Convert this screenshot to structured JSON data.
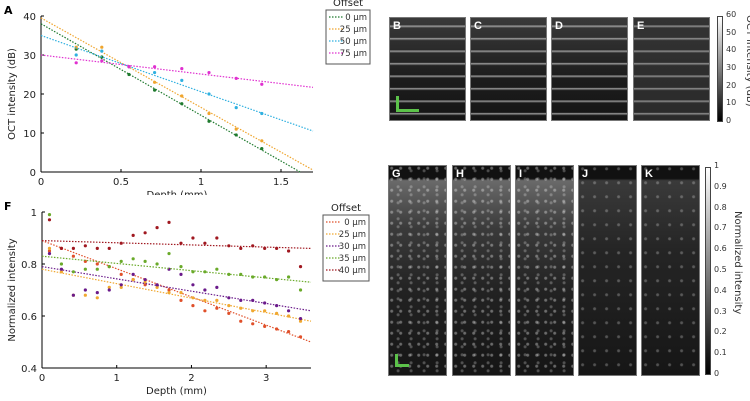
{
  "chart_data": [
    {
      "panel": "A",
      "type": "scatter",
      "xlabel": "Depth (mm)",
      "ylabel": "OCT intensity (dB)",
      "xlim": [
        0,
        1.7
      ],
      "ylim": [
        0,
        40
      ],
      "xticks": [
        "0",
        "0.5",
        "1",
        "1.5"
      ],
      "yticks": [
        "0",
        "10",
        "20",
        "30",
        "40"
      ],
      "grid": false,
      "legend_title": "Offset",
      "legend_placement": "right",
      "series": [
        {
          "name": "0 μm",
          "color": "#1f7a2e",
          "x": [
            0.22,
            0.38,
            0.55,
            0.71,
            0.88,
            1.05,
            1.22,
            1.38
          ],
          "y": [
            31.5,
            29.5,
            25,
            21,
            17.5,
            13,
            9.5,
            6
          ],
          "fit": [
            38,
            0,
            1.62
          ]
        },
        {
          "name": "25 μm",
          "color": "#efa52e",
          "x": [
            0.22,
            0.38,
            0.55,
            0.71,
            0.88,
            1.05,
            1.22,
            1.38
          ],
          "y": [
            32,
            32,
            27,
            23,
            19.5,
            15,
            11,
            8
          ],
          "fit": [
            39.5,
            0.5,
            1.7
          ]
        },
        {
          "name": "50 μm",
          "color": "#2fb0e0",
          "x": [
            0.22,
            0.38,
            0.55,
            0.71,
            0.88,
            1.05,
            1.22,
            1.38
          ],
          "y": [
            30,
            31,
            27,
            25.5,
            23.5,
            20,
            16.5,
            15
          ],
          "fit": [
            35,
            10.5,
            1.7
          ]
        },
        {
          "name": "75 μm",
          "color": "#e030d0",
          "x": [
            0.22,
            0.38,
            0.55,
            0.71,
            0.88,
            1.05,
            1.22,
            1.38
          ],
          "y": [
            28,
            28.5,
            27,
            27,
            26.5,
            25.5,
            24,
            22.5
          ],
          "fit": [
            30,
            21.7,
            1.7
          ]
        }
      ]
    },
    {
      "panel": "F",
      "type": "scatter",
      "xlabel": "Depth (mm)",
      "ylabel": "Normalized intensity",
      "xlim": [
        0,
        3.6
      ],
      "ylim": [
        0.4,
        1
      ],
      "xticks": [
        "0",
        "1",
        "2",
        "3"
      ],
      "yticks": [
        "0.4",
        "0.6",
        "0.8",
        "1"
      ],
      "grid": false,
      "legend_title": "Offset",
      "legend_placement": "right",
      "x": [
        0.1,
        0.26,
        0.42,
        0.58,
        0.74,
        0.9,
        1.06,
        1.22,
        1.38,
        1.54,
        1.7,
        1.86,
        2.02,
        2.18,
        2.34,
        2.5,
        2.66,
        2.82,
        2.98,
        3.14,
        3.3,
        3.46
      ],
      "series": [
        {
          "name": "0 μm",
          "color": "#e0502a",
          "y": [
            0.85,
            0.86,
            0.83,
            0.81,
            0.8,
            0.79,
            0.76,
            0.74,
            0.72,
            0.72,
            0.7,
            0.66,
            0.64,
            0.62,
            0.63,
            0.61,
            0.58,
            0.57,
            0.56,
            0.55,
            0.54,
            0.52
          ],
          "fit": [
            0.89,
            0.5,
            3.6
          ]
        },
        {
          "name": "25 μm",
          "color": "#f0a830",
          "y": [
            0.86,
            0.77,
            0.68,
            0.68,
            0.67,
            0.71,
            0.71,
            0.74,
            0.73,
            0.71,
            0.69,
            0.69,
            0.67,
            0.66,
            0.66,
            0.64,
            0.63,
            0.62,
            0.62,
            0.61,
            0.6,
            0.58
          ],
          "fit": [
            0.78,
            0.58,
            3.6
          ]
        },
        {
          "name": "30 μm",
          "color": "#6a1a8a",
          "y": [
            0.84,
            0.78,
            0.68,
            0.7,
            0.69,
            0.7,
            0.72,
            0.76,
            0.74,
            0.72,
            0.78,
            0.76,
            0.72,
            0.7,
            0.71,
            0.67,
            0.66,
            0.66,
            0.65,
            0.64,
            0.62,
            0.59
          ],
          "fit": [
            0.79,
            0.62,
            3.6
          ]
        },
        {
          "name": "35 μm",
          "color": "#6aaa2a",
          "y": [
            0.99,
            0.8,
            0.77,
            0.78,
            0.78,
            0.79,
            0.81,
            0.82,
            0.81,
            0.8,
            0.84,
            0.79,
            0.77,
            0.77,
            0.78,
            0.76,
            0.76,
            0.75,
            0.75,
            0.74,
            0.75,
            0.7
          ],
          "fit": [
            0.83,
            0.73,
            3.6
          ]
        },
        {
          "name": "40 μm",
          "color": "#a01820",
          "y": [
            0.97,
            0.86,
            0.86,
            0.87,
            0.86,
            0.86,
            0.88,
            0.91,
            0.92,
            0.94,
            0.96,
            0.88,
            0.9,
            0.88,
            0.9,
            0.87,
            0.86,
            0.87,
            0.86,
            0.86,
            0.85,
            0.79
          ],
          "fit": [
            0.89,
            0.86,
            3.6
          ]
        }
      ]
    }
  ],
  "panels": {
    "oct_images": [
      "B",
      "C",
      "D",
      "E"
    ],
    "bead_images": [
      "G",
      "H",
      "I",
      "J",
      "K"
    ],
    "oct_colorbar": {
      "label": "OCT intensity (dB)",
      "ticks": [
        "60",
        "50",
        "40",
        "30",
        "20",
        "10",
        "0"
      ]
    },
    "bead_colorbar": {
      "label": "Normalized intensity",
      "ticks": [
        "1",
        "0.9",
        "0.8",
        "0.7",
        "0.6",
        "0.5",
        "0.4",
        "0.3",
        "0.2",
        "0.1",
        "0"
      ]
    },
    "scalebar_color": "#5cc24a"
  }
}
